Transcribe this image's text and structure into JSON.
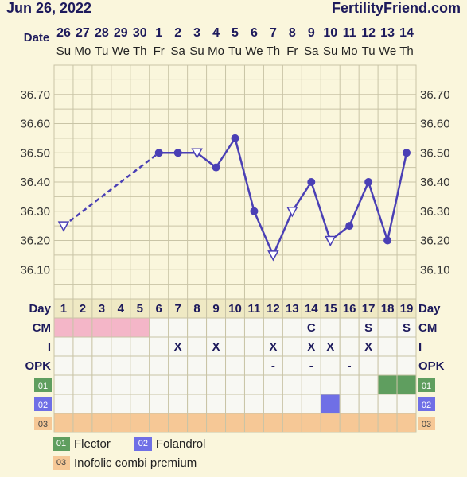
{
  "header": {
    "title": "Jun 26, 2022",
    "brand": "FertilityFriend.com"
  },
  "chart_data": {
    "type": "line",
    "date_label": "Date",
    "dates": [
      "26",
      "27",
      "28",
      "29",
      "30",
      "1",
      "2",
      "3",
      "4",
      "5",
      "6",
      "7",
      "8",
      "9",
      "10",
      "11",
      "12",
      "13",
      "14"
    ],
    "weekdays": [
      "Su",
      "Mo",
      "Tu",
      "We",
      "Th",
      "Fr",
      "Sa",
      "Su",
      "Mo",
      "Tu",
      "We",
      "Th",
      "Fr",
      "Sa",
      "Su",
      "Mo",
      "Tu",
      "We",
      "Th"
    ],
    "cycle_days": [
      "1",
      "2",
      "3",
      "4",
      "5",
      "6",
      "7",
      "8",
      "9",
      "10",
      "11",
      "12",
      "13",
      "14",
      "15",
      "16",
      "17",
      "18",
      "19"
    ],
    "y_ticks": [
      "36.70",
      "36.60",
      "36.50",
      "36.40",
      "36.30",
      "36.20",
      "36.10"
    ],
    "ylim": [
      36.0,
      36.8
    ],
    "series": [
      {
        "values": [
          36.25,
          null,
          null,
          null,
          null,
          36.5,
          36.5,
          36.5,
          36.45,
          36.55,
          36.3,
          36.15,
          36.3,
          36.4,
          36.2,
          36.25,
          36.4,
          36.2,
          36.5
        ],
        "marker": [
          "open",
          "none",
          "none",
          "none",
          "none",
          "filled",
          "filled",
          "open",
          "filled",
          "filled",
          "filled",
          "open",
          "open",
          "filled",
          "open",
          "filled",
          "filled",
          "filled",
          "filled"
        ]
      }
    ],
    "rows": [
      {
        "label": "Day"
      },
      {
        "label": "CM",
        "values": [
          "",
          "",
          "",
          "",
          "",
          "",
          "",
          "",
          "",
          "",
          "",
          "",
          "",
          "C",
          "",
          "",
          "S",
          "",
          "S"
        ]
      },
      {
        "label": "I",
        "values": [
          "",
          "",
          "",
          "",
          "",
          "",
          "X",
          "",
          "X",
          "",
          "",
          "X",
          "",
          "X",
          "X",
          "",
          "X",
          "",
          ""
        ]
      },
      {
        "label": "OPK",
        "values": [
          "",
          "",
          "",
          "",
          "",
          "",
          "",
          "",
          "",
          "",
          "",
          "-",
          "",
          "-",
          "",
          "-",
          "",
          "",
          ""
        ]
      },
      {
        "label": "01",
        "color": "#5f9e5f",
        "filled": [
          18,
          19
        ]
      },
      {
        "label": "02",
        "color": "#6f6fe6",
        "filled": [
          15
        ]
      },
      {
        "label": "03",
        "color": "#f6c896",
        "filled": [
          1,
          2,
          3,
          4,
          5,
          6,
          7,
          8,
          9,
          10,
          11,
          12,
          13,
          14,
          15,
          16,
          17,
          18,
          19
        ]
      }
    ],
    "period_days": [
      1,
      2,
      3,
      4,
      5
    ],
    "legend": [
      {
        "tag": "01",
        "name": "Flector",
        "color": "#5f9e5f"
      },
      {
        "tag": "02",
        "name": "Folandrol",
        "color": "#6f6fe6"
      },
      {
        "tag": "03",
        "name": "Inofolic combi premium",
        "color": "#f6c896"
      }
    ]
  },
  "colors": {
    "line": "#4a3fb5",
    "grid": "#c9c4a6",
    "text": "#1d1a5c",
    "period": "#f4b6c8"
  }
}
